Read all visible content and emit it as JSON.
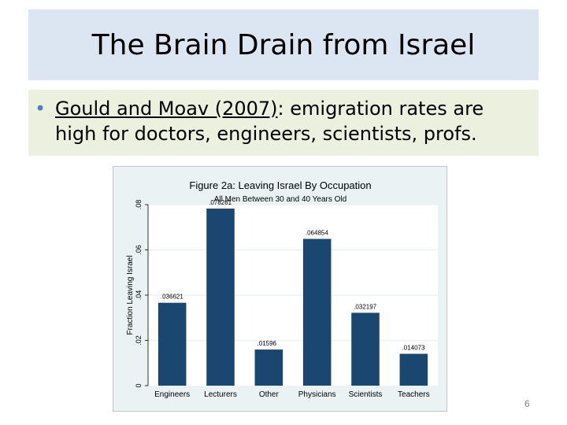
{
  "slide": {
    "title": "The Brain Drain from Israel",
    "bullet_citation": "Gould and Moav (2007)",
    "bullet_text_line1": ": emigration rates are",
    "bullet_text_line2": "high for doctors, engineers, scientists, profs.",
    "page_number": "6"
  },
  "chart_data": {
    "type": "bar",
    "title": "Figure 2a: Leaving Israel By Occupation",
    "subtitle": "All Men Between 30 and 40 Years Old",
    "ylabel": "Fraction Leaving Israel",
    "xlabel": "",
    "categories": [
      "Engineers",
      "Lecturers",
      "Other",
      "Physicians",
      "Scientists",
      "Teachers"
    ],
    "values": [
      0.036621,
      0.078261,
      0.01596,
      0.064854,
      0.032197,
      0.014073
    ],
    "data_labels": [
      ".036621",
      ".078261",
      ".01596",
      ".064854",
      ".032197",
      ".014073"
    ],
    "yticks": [
      "0",
      ".02",
      ".04",
      ".06",
      ".08"
    ],
    "ytick_values": [
      0,
      0.02,
      0.04,
      0.06,
      0.08
    ],
    "ylim": [
      0,
      0.08
    ],
    "bar_color": "#1a476f",
    "grid": true
  }
}
